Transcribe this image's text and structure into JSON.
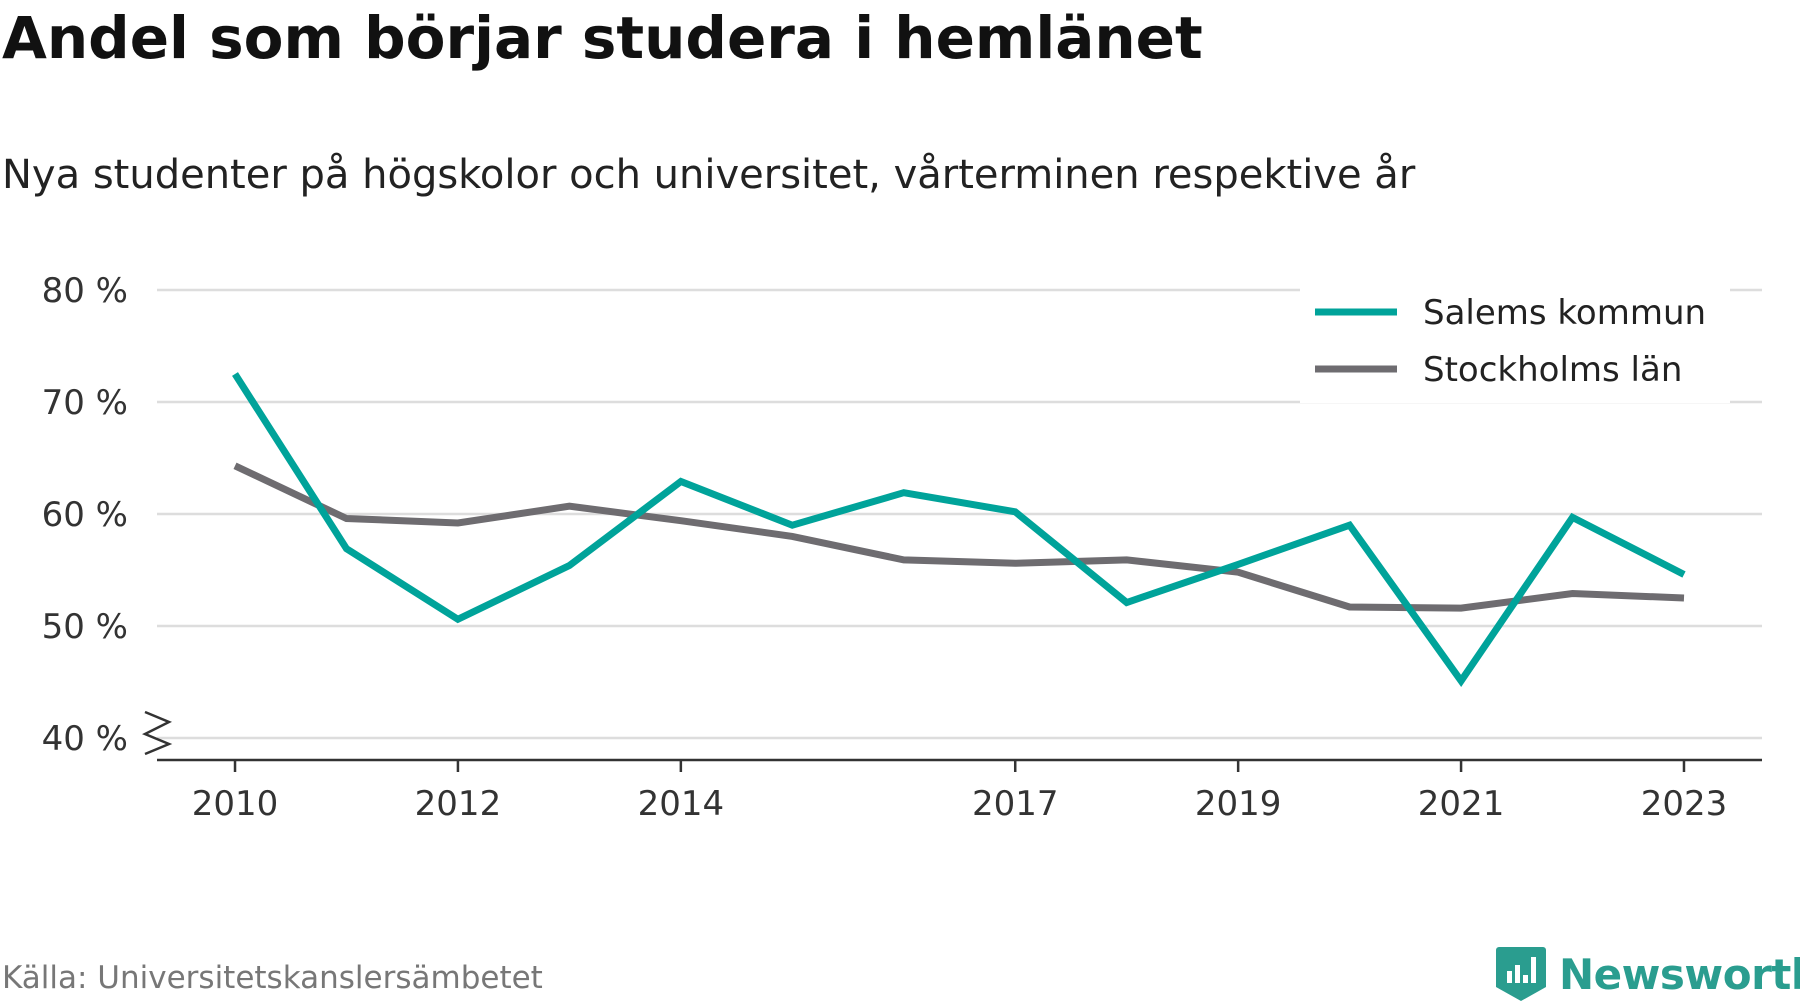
{
  "header": {
    "title": "Andel som börjar studera i hemlänet",
    "subtitle": "Nya studenter på högskolor och universitet, vårterminen respektive år"
  },
  "footer": {
    "source": "Källa: Universitetskanslersämbetet",
    "brand": "Newsworthy",
    "brand_icon": "newsworthy-logo-icon"
  },
  "chart_data": {
    "type": "line",
    "x": [
      2010,
      2011,
      2012,
      2013,
      2014,
      2015,
      2016,
      2017,
      2018,
      2019,
      2020,
      2021,
      2022,
      2023
    ],
    "x_tick_labels": [
      "2010",
      "2012",
      "2014",
      "2017",
      "2019",
      "2021",
      "2023"
    ],
    "x_ticks": [
      2010,
      2012,
      2014,
      2017,
      2019,
      2021,
      2023
    ],
    "y_ticks": [
      40,
      50,
      60,
      70,
      80
    ],
    "y_tick_labels": [
      "40 %",
      "50 %",
      "60 %",
      "70 %",
      "80 %"
    ],
    "ylim": [
      40,
      80
    ],
    "xlim": [
      2009.3,
      2023.7
    ],
    "y_axis_break": true,
    "grid": true,
    "legend_position": "top-right",
    "series": [
      {
        "name": "Salems kommun",
        "color": "#00a39a",
        "values": [
          72.5,
          56.9,
          50.6,
          55.4,
          62.9,
          59.0,
          61.9,
          60.2,
          52.1,
          55.5,
          59.0,
          45.1,
          59.7,
          54.6
        ]
      },
      {
        "name": "Stockholms län",
        "color": "#6e6c70",
        "values": [
          64.3,
          59.6,
          59.2,
          60.7,
          59.4,
          58.0,
          55.9,
          55.6,
          55.9,
          54.8,
          51.7,
          51.6,
          52.9,
          52.5
        ]
      }
    ]
  }
}
